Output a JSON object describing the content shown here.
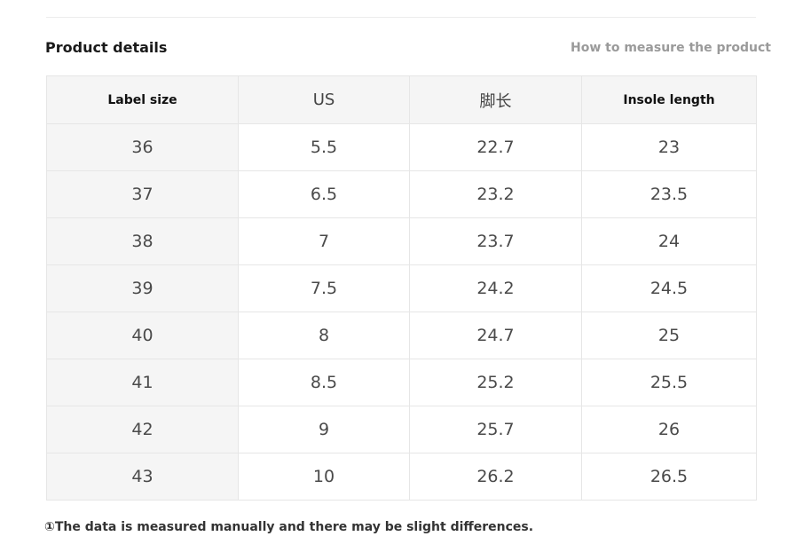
{
  "header": {
    "title": "Product details",
    "measure_link": "How to measure the product"
  },
  "size_table": {
    "columns": [
      "Label size",
      "US",
      "脚长",
      "Insole length"
    ],
    "rows": [
      [
        "36",
        "5.5",
        "22.7",
        "23"
      ],
      [
        "37",
        "6.5",
        "23.2",
        "23.5"
      ],
      [
        "38",
        "7",
        "23.7",
        "24"
      ],
      [
        "39",
        "7.5",
        "24.2",
        "24.5"
      ],
      [
        "40",
        "8",
        "24.7",
        "25"
      ],
      [
        "41",
        "8.5",
        "25.2",
        "25.5"
      ],
      [
        "42",
        "9",
        "25.7",
        "26"
      ],
      [
        "43",
        "10",
        "26.2",
        "26.5"
      ]
    ]
  },
  "footnote": "①The data is measured manually and there may be slight differences."
}
